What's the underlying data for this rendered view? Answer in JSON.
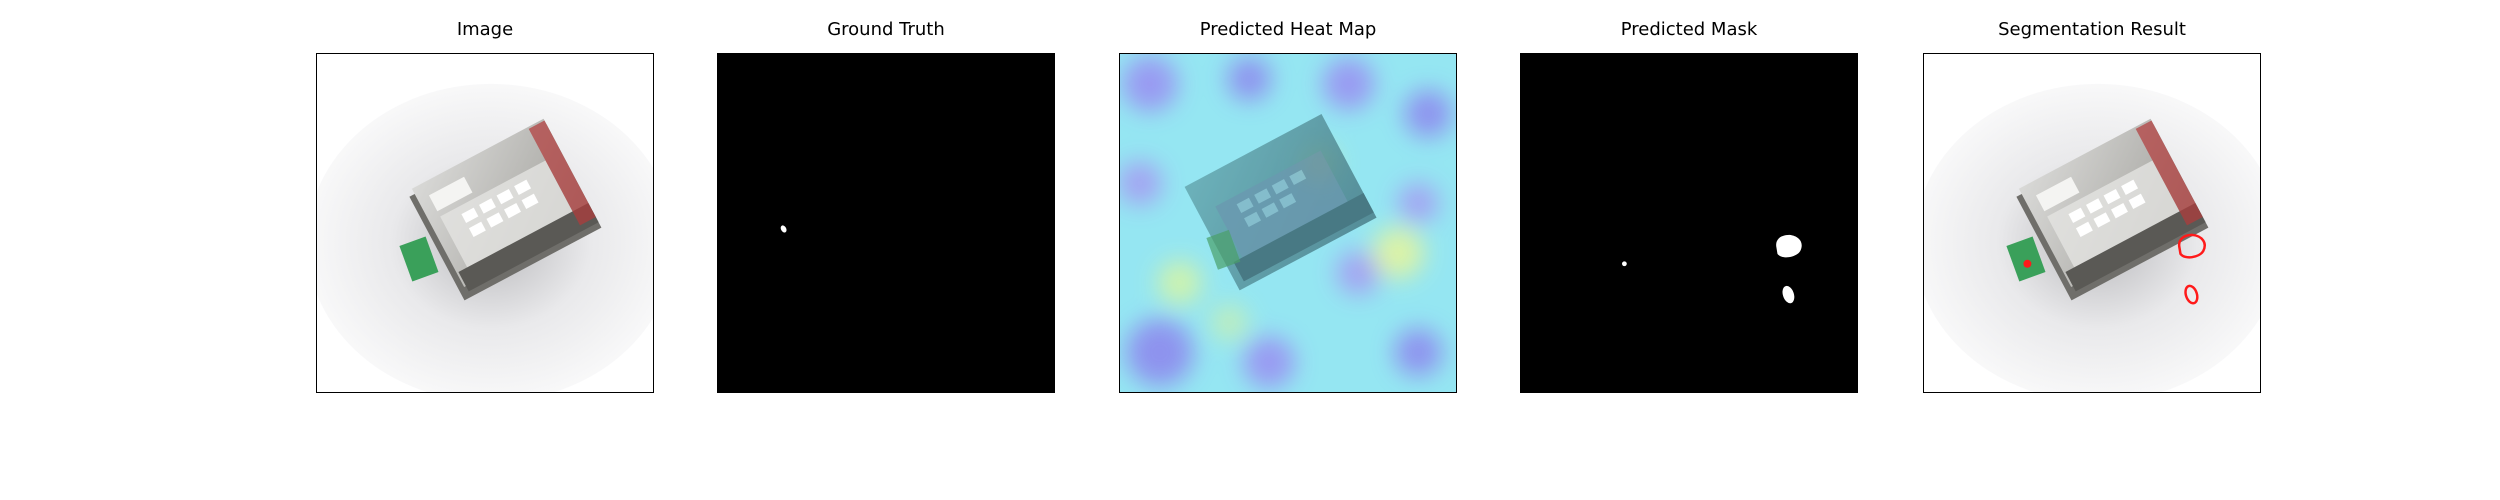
{
  "panels": [
    {
      "title": "Image",
      "icon": "device-photo-icon"
    },
    {
      "title": "Ground Truth",
      "icon": "binary-mask-icon"
    },
    {
      "title": "Predicted Heat Map",
      "icon": "heatmap-icon"
    },
    {
      "title": "Predicted Mask",
      "icon": "binary-mask-icon"
    },
    {
      "title": "Segmentation Result",
      "icon": "contour-overlay-icon"
    }
  ],
  "colors": {
    "mask_background": "#000000",
    "mask_foreground": "#ffffff",
    "contour": "#ff1a1a",
    "heat_low": "#7b6ff0",
    "heat_mid": "#8fe8f0",
    "heat_high": "#e8f59a"
  }
}
